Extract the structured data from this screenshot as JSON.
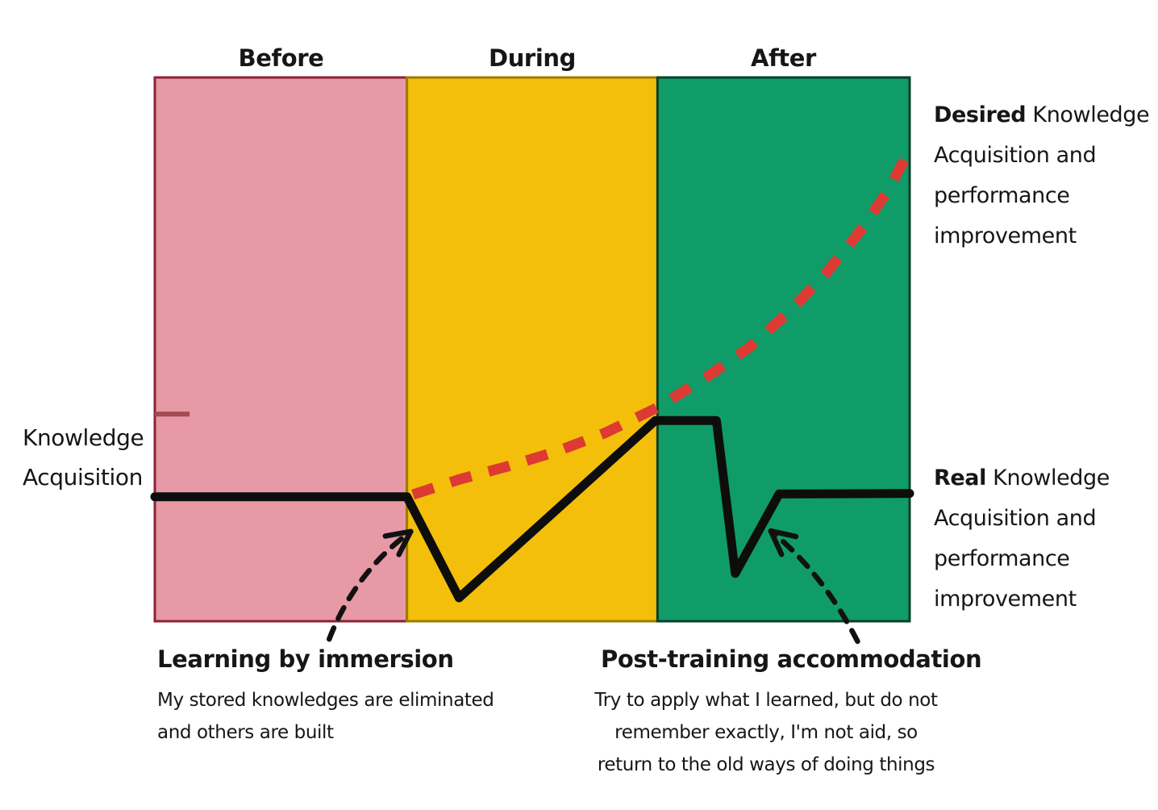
{
  "colors": {
    "background": "#ffffff",
    "text": "#161616",
    "arrow": "#111111",
    "tick": "#A34A52"
  },
  "y_axis_label": {
    "line1": "Knowledge",
    "line2": "Acquisition"
  },
  "right_labels": {
    "desired": {
      "bold": "Desired",
      "rest": "Knowledge",
      "lines": [
        "Acquisition and",
        "performance",
        "improvement"
      ]
    },
    "real": {
      "bold": "Real",
      "rest": "Knowledge",
      "lines": [
        "Acquisition and",
        "performance",
        "improvement"
      ]
    }
  },
  "annotations": {
    "learning": {
      "title": "Learning by immersion",
      "lines": [
        "My stored knowledges are eliminated",
        "and others are built"
      ],
      "arrow": {
        "from": [
          23.1,
          -3.3
        ],
        "to": [
          33.9,
          16.5
        ]
      }
    },
    "post_training": {
      "title": "Post-training accommodation",
      "lines": [
        "Try to apply what I learned, but do not",
        "remember exactly, I'm not aid, so",
        "return to the old ways of doing things"
      ],
      "arrow": {
        "from": [
          93.1,
          -3.7
        ],
        "to": [
          81.6,
          16.6
        ]
      }
    }
  },
  "chart_data": {
    "type": "line",
    "title": "",
    "xlabel": "",
    "ylabel": "Knowledge Acquisition",
    "x_unit": "percent of training timeline",
    "y_unit": "relative knowledge level (percent of plot height, qualitative)",
    "grid": false,
    "legend_position": "right",
    "xlim": [
      0,
      100
    ],
    "ylim": [
      0,
      100
    ],
    "phases": [
      {
        "label": "Before",
        "x_range": [
          0,
          33.4
        ],
        "fill": "#E799A5",
        "border": "#8E2138"
      },
      {
        "label": "During",
        "x_range": [
          33.4,
          66.6
        ],
        "fill": "#F3BF0B",
        "border": "#9A7D00"
      },
      {
        "label": "After",
        "x_range": [
          66.6,
          100
        ],
        "fill": "#109C68",
        "border": "#09402B"
      }
    ],
    "series": [
      {
        "name": "Real Knowledge Acquisition and performance improvement",
        "style": "solid",
        "color": "#0D0D0D",
        "points": [
          [
            0,
            22.9
          ],
          [
            33.4,
            22.9
          ],
          [
            40.3,
            4.3
          ],
          [
            66.3,
            36.9
          ],
          [
            74.4,
            36.9
          ],
          [
            76.9,
            8.8
          ],
          [
            82.7,
            23.4
          ],
          [
            100,
            23.5
          ]
        ]
      },
      {
        "name": "Desired Knowledge Acquisition and performance improvement",
        "style": "dashed",
        "color": "#DC3A33",
        "points": [
          [
            34.2,
            23.3
          ],
          [
            40.4,
            26.1
          ],
          [
            46.8,
            28.5
          ],
          [
            53.2,
            31.2
          ],
          [
            59.6,
            34.6
          ],
          [
            66.6,
            39.3
          ],
          [
            73,
            44.8
          ],
          [
            78.8,
            50.4
          ],
          [
            84.2,
            57.1
          ],
          [
            89,
            64.1
          ],
          [
            93.3,
            71.5
          ],
          [
            97,
            78.9
          ],
          [
            100,
            86.6
          ]
        ]
      }
    ],
    "y_reference_tick": {
      "y": 38.1,
      "x_range": [
        0,
        4.6
      ],
      "color": "#A34A52"
    }
  }
}
